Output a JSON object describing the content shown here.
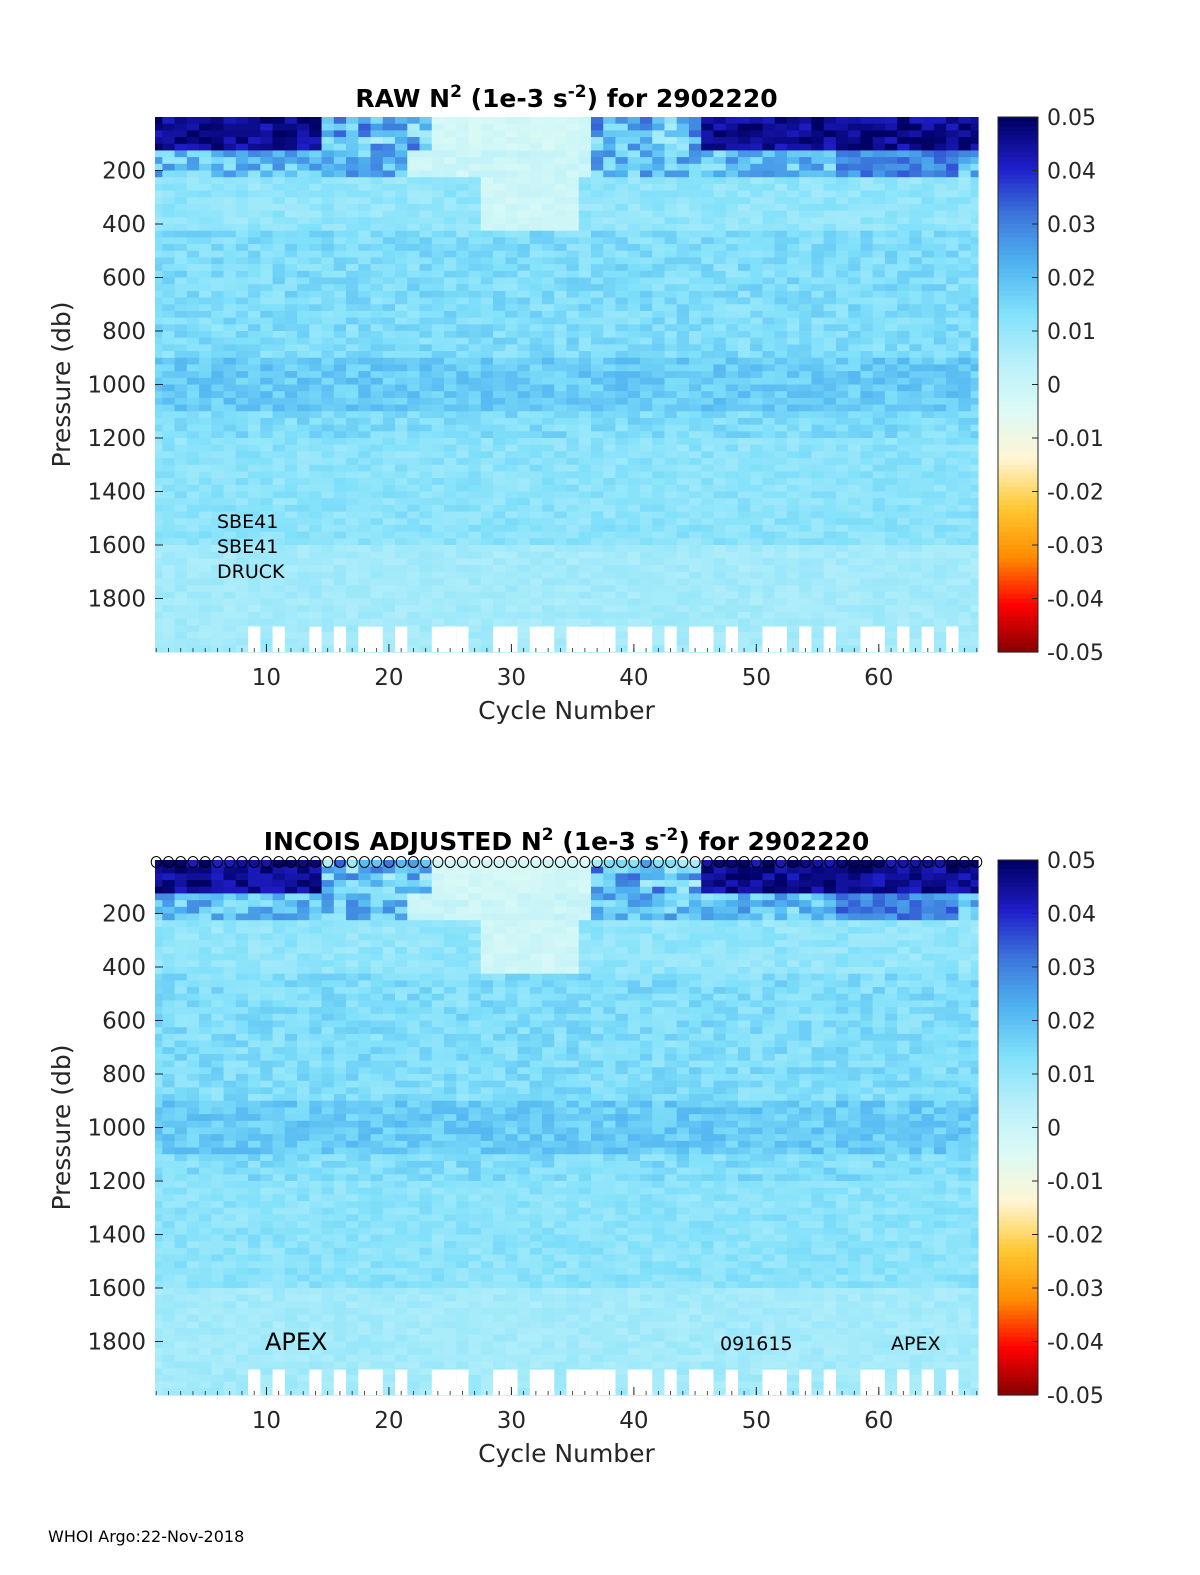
{
  "footer": "WHOI Argo:22-Nov-2018",
  "colors": {
    "colormap": [
      "#800000",
      "#ff0000",
      "#ff8c00",
      "#ffc832",
      "#fff5d2",
      "#dcfaf5",
      "#b9f0fa",
      "#82e1fa",
      "#50b4f0",
      "#3c78dc",
      "#1e1ec8",
      "#000064"
    ],
    "axis": "#262626",
    "gap": "#ffffff"
  },
  "chart_data": [
    {
      "type": "heatmap",
      "title": "RAW N",
      "title_sup1": "2",
      "title_mid": " (1e-3 s",
      "title_sup2": "-2",
      "title_end": ") for 2902220",
      "xlabel": "Cycle Number",
      "ylabel": "Pressure (db)",
      "xlim": [
        0.9,
        68.1
      ],
      "ylim": [
        0,
        2000
      ],
      "xticks": [
        10,
        20,
        30,
        40,
        50,
        60
      ],
      "yticks": [
        200,
        400,
        600,
        800,
        1000,
        1200,
        1400,
        1600,
        1800
      ],
      "colorbar_ticks": [
        0.05,
        0.04,
        0.03,
        0.02,
        0.01,
        0,
        -0.01,
        -0.02,
        -0.03,
        -0.04,
        -0.05
      ],
      "clim": [
        -0.05,
        0.05
      ],
      "annotations": [
        "SBE41",
        "SBE41",
        "DRUCK"
      ],
      "gap_cycles": [
        9,
        11,
        14,
        16,
        18,
        19,
        21,
        24,
        25,
        26,
        29,
        30,
        32,
        33,
        35,
        36,
        37,
        38,
        40,
        41,
        43,
        45,
        46,
        48,
        51,
        52,
        54,
        56,
        59,
        60,
        62,
        64,
        66
      ],
      "markers": []
    },
    {
      "type": "heatmap",
      "title": "INCOIS  ADJUSTED N",
      "title_sup1": "2",
      "title_mid": " (1e-3 s",
      "title_sup2": "-2",
      "title_end": ") for 2902220",
      "xlabel": "Cycle Number",
      "ylabel": "Pressure (db)",
      "xlim": [
        0.9,
        68.1
      ],
      "ylim": [
        0,
        2000
      ],
      "xticks": [
        10,
        20,
        30,
        40,
        50,
        60
      ],
      "yticks": [
        200,
        400,
        600,
        800,
        1000,
        1200,
        1400,
        1600,
        1800
      ],
      "colorbar_ticks": [
        0.05,
        0.04,
        0.03,
        0.02,
        0.01,
        0,
        -0.01,
        -0.02,
        -0.03,
        -0.04,
        -0.05
      ],
      "clim": [
        -0.05,
        0.05
      ],
      "annotations": [
        "APEX",
        "091615",
        "APEX"
      ],
      "gap_cycles": [
        9,
        11,
        14,
        16,
        18,
        19,
        21,
        24,
        25,
        26,
        29,
        30,
        32,
        33,
        35,
        36,
        37,
        38,
        40,
        41,
        43,
        45,
        46,
        48,
        51,
        52,
        54,
        56,
        59,
        60,
        62,
        64,
        66
      ],
      "markers": [
        1,
        2,
        3,
        4,
        5,
        6,
        7,
        8,
        9,
        10,
        11,
        12,
        13,
        14,
        15,
        16,
        17,
        18,
        19,
        20,
        21,
        22,
        23,
        24,
        25,
        26,
        27,
        28,
        29,
        30,
        31,
        32,
        33,
        34,
        35,
        36,
        37,
        38,
        39,
        40,
        41,
        42,
        43,
        44,
        45,
        46,
        47,
        48,
        49,
        50,
        51,
        52,
        53,
        54,
        55,
        56,
        57,
        58,
        59,
        60,
        61,
        62,
        63,
        64,
        65,
        66,
        67,
        68
      ]
    }
  ]
}
